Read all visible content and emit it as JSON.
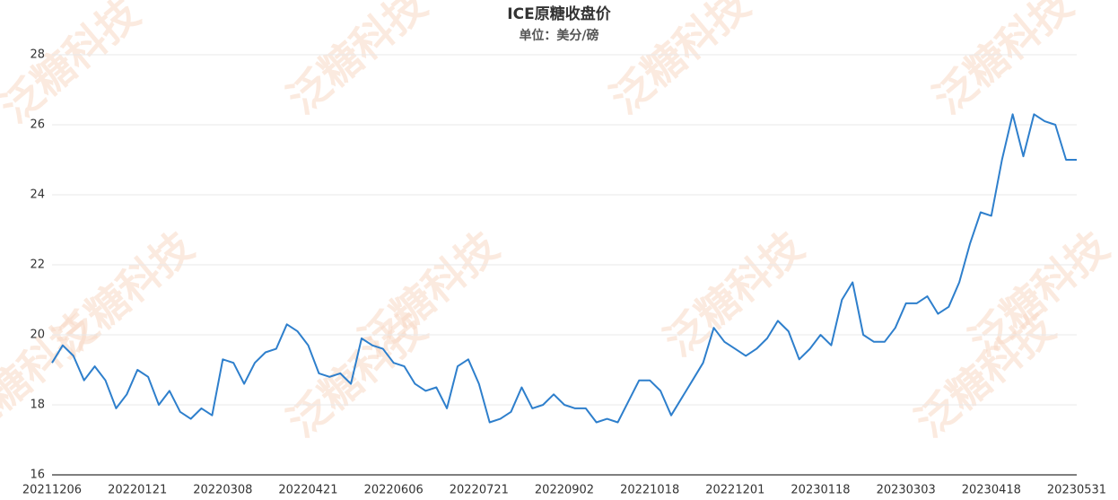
{
  "chart_data": {
    "type": "line",
    "title": "ICE原糖收盘价",
    "subtitle": "单位：美分/磅",
    "watermark": "泛糖科技",
    "categories": [
      "20211206",
      null,
      null,
      null,
      null,
      null,
      null,
      null,
      "20220121",
      null,
      null,
      null,
      null,
      null,
      null,
      null,
      "20220308",
      null,
      null,
      null,
      null,
      null,
      null,
      null,
      "20220421",
      null,
      null,
      null,
      null,
      null,
      null,
      null,
      "20220606",
      null,
      null,
      null,
      null,
      null,
      null,
      null,
      "20220721",
      null,
      null,
      null,
      null,
      null,
      null,
      null,
      "20220902",
      null,
      null,
      null,
      null,
      null,
      null,
      null,
      "20221018",
      null,
      null,
      null,
      null,
      null,
      null,
      null,
      "20221201",
      null,
      null,
      null,
      null,
      null,
      null,
      null,
      "20230118",
      null,
      null,
      null,
      null,
      null,
      null,
      null,
      "20230303",
      null,
      null,
      null,
      null,
      null,
      null,
      null,
      "20230418",
      null,
      null,
      null,
      null,
      null,
      null,
      null,
      "20230531"
    ],
    "values": [
      19.2,
      19.7,
      19.4,
      18.7,
      19.1,
      18.7,
      17.9,
      18.3,
      19.0,
      18.8,
      18.0,
      18.4,
      17.8,
      17.6,
      17.9,
      17.7,
      19.3,
      19.2,
      18.6,
      19.2,
      19.5,
      19.6,
      20.3,
      20.1,
      19.7,
      18.9,
      18.8,
      18.9,
      18.6,
      19.9,
      19.7,
      19.6,
      19.2,
      19.1,
      18.6,
      18.4,
      18.5,
      17.9,
      19.1,
      19.3,
      18.6,
      17.5,
      17.6,
      17.8,
      18.5,
      17.9,
      18.0,
      18.3,
      18.0,
      17.9,
      17.9,
      17.5,
      17.6,
      17.5,
      18.1,
      18.7,
      18.7,
      18.4,
      17.7,
      18.2,
      18.7,
      19.2,
      20.2,
      19.8,
      19.6,
      19.4,
      19.6,
      19.9,
      20.4,
      20.1,
      19.3,
      19.6,
      20.0,
      19.7,
      21.0,
      21.5,
      20.0,
      19.8,
      19.8,
      20.2,
      20.9,
      20.9,
      21.1,
      20.6,
      20.8,
      21.5,
      22.6,
      23.5,
      23.4,
      25.0,
      26.3,
      25.1,
      26.3,
      26.1,
      26.0,
      25.0,
      25.0
    ],
    "color": "#2e7fcc",
    "ylim": [
      16,
      28
    ],
    "yticks": [
      16,
      18,
      20,
      22,
      24,
      26,
      28
    ],
    "grid": true
  }
}
